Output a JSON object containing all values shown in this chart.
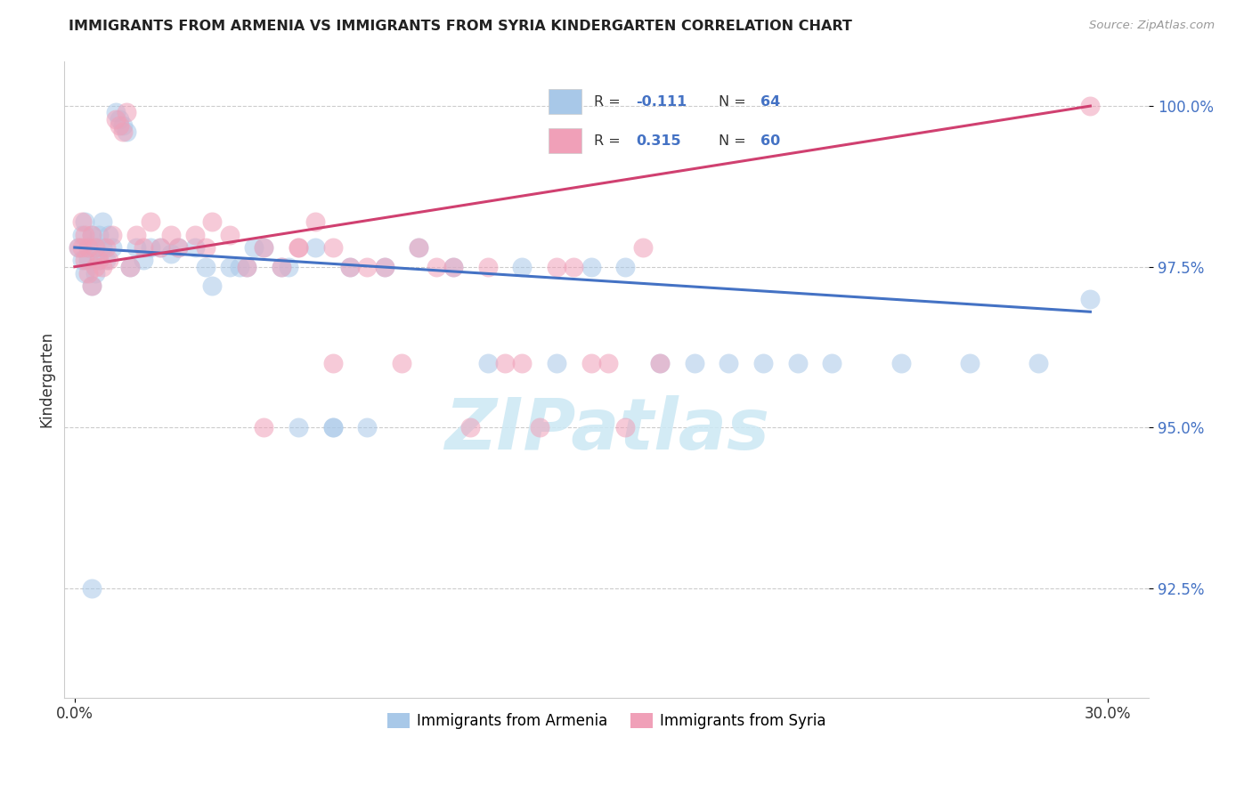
{
  "title": "IMMIGRANTS FROM ARMENIA VS IMMIGRANTS FROM SYRIA KINDERGARTEN CORRELATION CHART",
  "source_text": "Source: ZipAtlas.com",
  "ylabel": "Kindergarten",
  "xlim": [
    -0.003,
    0.312
  ],
  "ylim": [
    0.908,
    1.007
  ],
  "ytick_labels": [
    "92.5%",
    "95.0%",
    "97.5%",
    "100.0%"
  ],
  "ytick_values": [
    0.925,
    0.95,
    0.975,
    1.0
  ],
  "xtick_labels": [
    "0.0%",
    "30.0%"
  ],
  "xtick_values": [
    0.0,
    0.3
  ],
  "color_armenia": "#a8c8e8",
  "color_syria": "#f0a0b8",
  "trendline_armenia_color": "#4472C4",
  "trendline_syria_color": "#d04070",
  "background_color": "#FFFFFF",
  "watermark": "ZIPatlas",
  "legend_items": [
    {
      "color": "#a8c8e8",
      "r": "-0.111",
      "n": "64"
    },
    {
      "color": "#f0a0b8",
      "r": "0.315",
      "n": "60"
    }
  ],
  "bottom_legend": [
    "Immigrants from Armenia",
    "Immigrants from Syria"
  ],
  "armenia_x": [
    0.001,
    0.002,
    0.002,
    0.003,
    0.003,
    0.004,
    0.004,
    0.005,
    0.005,
    0.006,
    0.006,
    0.007,
    0.007,
    0.008,
    0.008,
    0.009,
    0.01,
    0.011,
    0.012,
    0.013,
    0.014,
    0.015,
    0.016,
    0.018,
    0.02,
    0.022,
    0.025,
    0.028,
    0.03,
    0.035,
    0.038,
    0.04,
    0.045,
    0.05,
    0.055,
    0.06,
    0.065,
    0.07,
    0.075,
    0.08,
    0.09,
    0.1,
    0.11,
    0.12,
    0.13,
    0.14,
    0.15,
    0.16,
    0.17,
    0.18,
    0.19,
    0.2,
    0.21,
    0.22,
    0.24,
    0.26,
    0.28,
    0.048,
    0.052,
    0.062,
    0.075,
    0.085,
    0.295,
    0.005
  ],
  "armenia_y": [
    0.978,
    0.976,
    0.98,
    0.974,
    0.982,
    0.978,
    0.976,
    0.972,
    0.98,
    0.978,
    0.974,
    0.976,
    0.98,
    0.978,
    0.982,
    0.976,
    0.98,
    0.978,
    0.999,
    0.998,
    0.997,
    0.996,
    0.975,
    0.978,
    0.976,
    0.978,
    0.978,
    0.977,
    0.978,
    0.978,
    0.975,
    0.972,
    0.975,
    0.975,
    0.978,
    0.975,
    0.95,
    0.978,
    0.95,
    0.975,
    0.975,
    0.978,
    0.975,
    0.96,
    0.975,
    0.96,
    0.975,
    0.975,
    0.96,
    0.96,
    0.96,
    0.96,
    0.96,
    0.96,
    0.96,
    0.96,
    0.96,
    0.975,
    0.978,
    0.975,
    0.95,
    0.95,
    0.97,
    0.925
  ],
  "syria_x": [
    0.001,
    0.002,
    0.002,
    0.003,
    0.003,
    0.004,
    0.004,
    0.005,
    0.005,
    0.006,
    0.006,
    0.007,
    0.008,
    0.009,
    0.01,
    0.011,
    0.012,
    0.013,
    0.014,
    0.015,
    0.016,
    0.018,
    0.02,
    0.022,
    0.025,
    0.028,
    0.03,
    0.035,
    0.038,
    0.04,
    0.045,
    0.05,
    0.055,
    0.06,
    0.065,
    0.07,
    0.075,
    0.08,
    0.09,
    0.1,
    0.11,
    0.12,
    0.13,
    0.14,
    0.15,
    0.16,
    0.17,
    0.055,
    0.065,
    0.075,
    0.085,
    0.095,
    0.105,
    0.115,
    0.125,
    0.135,
    0.145,
    0.155,
    0.165,
    0.295
  ],
  "syria_y": [
    0.978,
    0.978,
    0.982,
    0.976,
    0.98,
    0.974,
    0.978,
    0.972,
    0.98,
    0.978,
    0.975,
    0.976,
    0.975,
    0.978,
    0.976,
    0.98,
    0.998,
    0.997,
    0.996,
    0.999,
    0.975,
    0.98,
    0.978,
    0.982,
    0.978,
    0.98,
    0.978,
    0.98,
    0.978,
    0.982,
    0.98,
    0.975,
    0.978,
    0.975,
    0.978,
    0.982,
    0.978,
    0.975,
    0.975,
    0.978,
    0.975,
    0.975,
    0.96,
    0.975,
    0.96,
    0.95,
    0.96,
    0.95,
    0.978,
    0.96,
    0.975,
    0.96,
    0.975,
    0.95,
    0.96,
    0.95,
    0.975,
    0.96,
    0.978,
    1.0
  ],
  "arm_trend_x": [
    0.0,
    0.295
  ],
  "arm_trend_y": [
    0.978,
    0.968
  ],
  "syr_trend_x": [
    0.0,
    0.295
  ],
  "syr_trend_y": [
    0.975,
    1.0
  ]
}
